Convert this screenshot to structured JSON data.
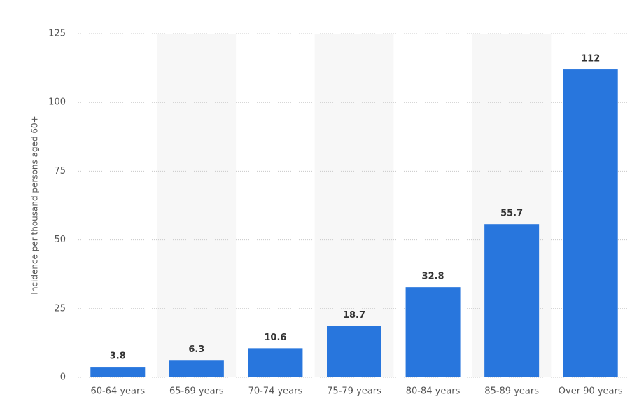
{
  "chart_data": {
    "type": "bar",
    "y_label": "Incidence per thousand persons aged 60+",
    "categories": [
      "60-64 years",
      "65-69 years",
      "70-74 years",
      "75-79 years",
      "80-84 years",
      "85-89 years",
      "Over 90 years"
    ],
    "values": [
      3.8,
      6.3,
      10.6,
      18.7,
      32.8,
      55.7,
      112
    ],
    "color": "#2876dd",
    "ylim": [
      0,
      125
    ],
    "yticks": [
      0,
      25,
      50,
      75,
      100,
      125
    ],
    "grid": true
  }
}
